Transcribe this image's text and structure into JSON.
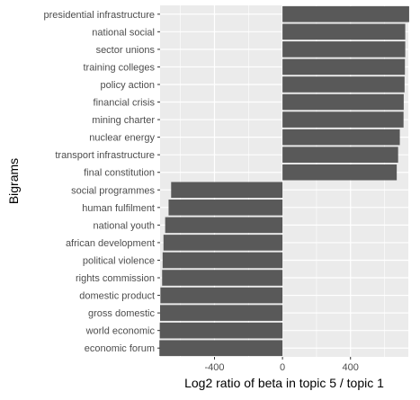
{
  "chart_data": {
    "type": "bar",
    "orientation": "horizontal",
    "xlabel": "Log2 ratio of beta in topic 5 / topic 1",
    "ylabel": "Bigrams",
    "xlim": [
      -720,
      740
    ],
    "xticks": [
      -400,
      0,
      400
    ],
    "xtick_labels": [
      "-400",
      "0",
      "400"
    ],
    "grid": true,
    "panel_background": "#ebebeb",
    "bar_color": "#595959",
    "categories": [
      "presidential infrastructure",
      "national social",
      "sector unions",
      "training colleges",
      "policy action",
      "financial crisis",
      "mining charter",
      "nuclear energy",
      "transport infrastructure",
      "final constitution",
      "social programmes",
      "human fulfilment",
      "national youth",
      "african development",
      "political violence",
      "rights commission",
      "domestic product",
      "gross domestic",
      "world economic",
      "economic forum"
    ],
    "values": [
      745,
      722,
      722,
      720,
      718,
      713,
      712,
      690,
      680,
      672,
      -655,
      -670,
      -690,
      -700,
      -705,
      -708,
      -718,
      -720,
      -722,
      -724
    ]
  }
}
